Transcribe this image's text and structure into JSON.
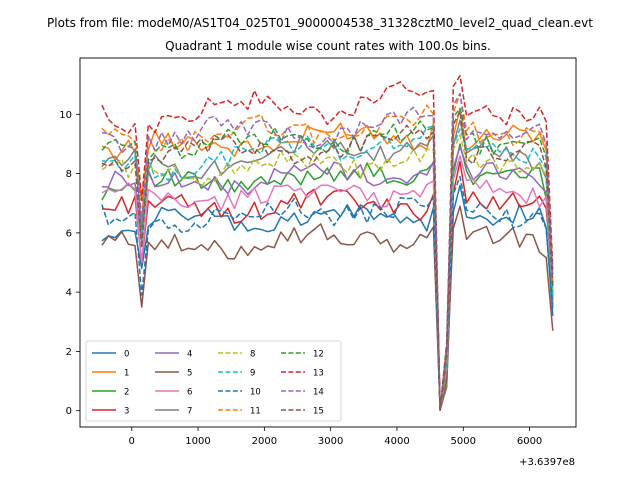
{
  "chart_data": {
    "type": "line",
    "suptitle": "Plots from file: modeM0/AS1T04_025T01_9000004538_31328cztM0_level2_quad_clean.evt",
    "title": "Quadrant 1 module wise count rates with 100.0s bins.",
    "xlabel": "",
    "ylabel": "",
    "offset_label": "+3.6397e8",
    "xlim": [
      -780,
      6700
    ],
    "ylim": [
      -0.55,
      11.9
    ],
    "x_ticks": [
      0,
      1000,
      2000,
      3000,
      4000,
      5000,
      6000
    ],
    "x_tick_labels": [
      "0",
      "1000",
      "2000",
      "3000",
      "4000",
      "5000",
      "6000"
    ],
    "y_ticks": [
      0,
      2,
      4,
      6,
      8,
      10
    ],
    "y_tick_labels": [
      "0",
      "2",
      "4",
      "6",
      "8",
      "10"
    ],
    "legend": {
      "location": "lower-left",
      "columns": 4
    },
    "series": [
      {
        "name": "0",
        "color": "#1f77b4",
        "dash": "solid",
        "base": 6.3,
        "slope": 0.25,
        "bump": 0.5,
        "end": 3.2
      },
      {
        "name": "1",
        "color": "#ff7f0e",
        "dash": "solid",
        "base": 8.8,
        "slope": 0.6,
        "bump": 0.5,
        "end": 3.5
      },
      {
        "name": "2",
        "color": "#2ca02c",
        "dash": "solid",
        "base": 7.5,
        "slope": 0.55,
        "bump": 0.4,
        "end": 3.9
      },
      {
        "name": "3",
        "color": "#d62728",
        "dash": "solid",
        "base": 6.8,
        "slope": 0.2,
        "bump": 0.45,
        "end": 4.3
      },
      {
        "name": "4",
        "color": "#9467bd",
        "dash": "solid",
        "base": 7.6,
        "slope": 0.5,
        "bump": 0.5,
        "end": 4.0
      },
      {
        "name": "5",
        "color": "#8c564b",
        "dash": "solid",
        "base": 5.5,
        "slope": 0.4,
        "bump": 0.5,
        "end": 2.7
      },
      {
        "name": "6",
        "color": "#e377c2",
        "dash": "solid",
        "base": 7.1,
        "slope": 0.35,
        "bump": 0.45,
        "end": 3.8
      },
      {
        "name": "7",
        "color": "#7f7f7f",
        "dash": "solid",
        "base": 8.2,
        "slope": 0.8,
        "bump": 0.6,
        "end": 3.6
      },
      {
        "name": "8",
        "color": "#bcbd22",
        "dash": "dashed",
        "base": 8.0,
        "slope": 0.5,
        "bump": 0.5,
        "end": 4.1
      },
      {
        "name": "9",
        "color": "#17becf",
        "dash": "dashed",
        "base": 8.1,
        "slope": 1.2,
        "bump": 0.6,
        "end": 3.9
      },
      {
        "name": "10",
        "color": "#1f77b4",
        "dash": "dashed",
        "base": 6.4,
        "slope": 0.5,
        "bump": 0.5,
        "end": 3.4
      },
      {
        "name": "11",
        "color": "#ff7f0e",
        "dash": "dashed",
        "base": 9.1,
        "slope": 0.6,
        "bump": 0.55,
        "end": 4.2
      },
      {
        "name": "12",
        "color": "#2ca02c",
        "dash": "dashed",
        "base": 8.9,
        "slope": 0.35,
        "bump": 0.45,
        "end": 4.6
      },
      {
        "name": "13",
        "color": "#d62728",
        "dash": "dashed",
        "base": 9.9,
        "slope": 0.6,
        "bump": 0.7,
        "end": 4.8
      },
      {
        "name": "14",
        "color": "#9467bd",
        "dash": "dashed",
        "base": 9.2,
        "slope": 0.45,
        "bump": 0.6,
        "end": 4.5
      },
      {
        "name": "15",
        "color": "#8c564b",
        "dash": "dashed",
        "base": 8.5,
        "slope": 0.6,
        "bump": 0.5,
        "end": 4.2
      }
    ]
  }
}
